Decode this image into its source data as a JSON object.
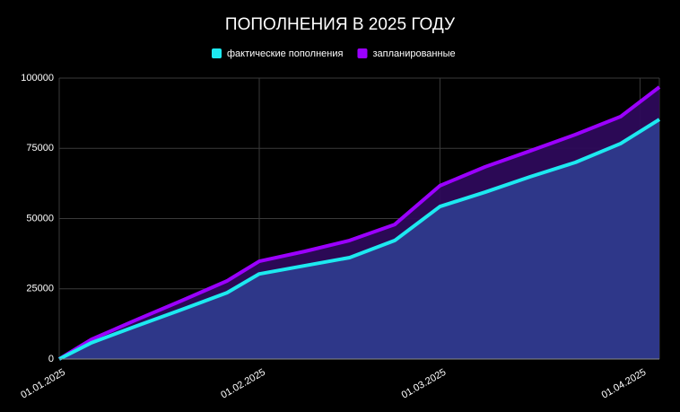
{
  "chart_data": {
    "type": "area",
    "title": "ПОПОЛНЕНИЯ В 2025 ГОДУ",
    "x": [
      "01.01.2025",
      "06.01.2025",
      "13.01.2025",
      "20.01.2025",
      "27.01.2025",
      "01.02.2025",
      "08.02.2025",
      "15.02.2025",
      "22.02.2025",
      "01.03.2025",
      "08.03.2025",
      "15.03.2025",
      "22.03.2025",
      "29.03.2025",
      "04.04.2025"
    ],
    "series": [
      {
        "name": "фактические пополнения",
        "color": "#1de9f0",
        "fill": "#2e3a8c",
        "values": [
          0,
          5800,
          11800,
          17600,
          23600,
          30300,
          33200,
          36100,
          42200,
          54300,
          59400,
          64900,
          70000,
          76700,
          85300
        ]
      },
      {
        "name": "запланированные",
        "color": "#9b00ff",
        "fill": "#2d0a5a",
        "values": [
          0,
          7000,
          14000,
          20800,
          27800,
          34800,
          38300,
          42200,
          47900,
          61700,
          68400,
          74100,
          79900,
          86300,
          96800
        ]
      }
    ],
    "xlim": [
      "01.01.2025",
      "04.04.2025"
    ],
    "xticks": [
      "01.01.2025",
      "01.02.2025",
      "01.03.2025",
      "01.04.2025"
    ],
    "ylim": [
      0,
      100000
    ],
    "yticks": [
      0,
      25000,
      50000,
      75000,
      100000
    ],
    "grid": true
  }
}
